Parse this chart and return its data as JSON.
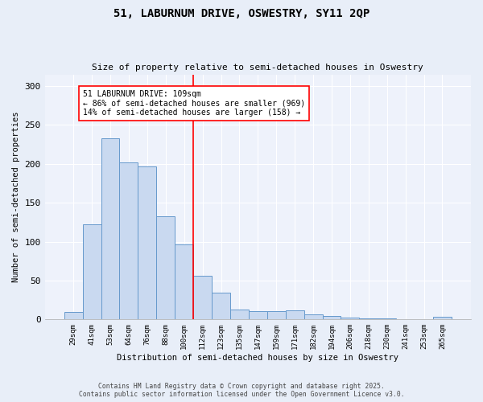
{
  "title1": "51, LABURNUM DRIVE, OSWESTRY, SY11 2QP",
  "title2": "Size of property relative to semi-detached houses in Oswestry",
  "xlabel": "Distribution of semi-detached houses by size in Oswestry",
  "ylabel": "Number of semi-detached properties",
  "categories": [
    "29sqm",
    "41sqm",
    "53sqm",
    "64sqm",
    "76sqm",
    "88sqm",
    "100sqm",
    "112sqm",
    "123sqm",
    "135sqm",
    "147sqm",
    "159sqm",
    "171sqm",
    "182sqm",
    "194sqm",
    "206sqm",
    "218sqm",
    "230sqm",
    "241sqm",
    "253sqm",
    "265sqm"
  ],
  "values": [
    10,
    122,
    233,
    202,
    197,
    133,
    96,
    56,
    34,
    13,
    11,
    11,
    12,
    7,
    4,
    2,
    1,
    1,
    0,
    0,
    3
  ],
  "bar_color": "#c9d9f0",
  "bar_edge_color": "#6699cc",
  "red_line_index": 7,
  "annotation_title": "51 LABURNUM DRIVE: 109sqm",
  "annotation_line1": "← 86% of semi-detached houses are smaller (969)",
  "annotation_line2": "14% of semi-detached houses are larger (158) →",
  "ylim": [
    0,
    315
  ],
  "yticks": [
    0,
    50,
    100,
    150,
    200,
    250,
    300
  ],
  "footer1": "Contains HM Land Registry data © Crown copyright and database right 2025.",
  "footer2": "Contains public sector information licensed under the Open Government Licence v3.0.",
  "bg_color": "#e8eef8",
  "plot_bg_color": "#eef2fb"
}
